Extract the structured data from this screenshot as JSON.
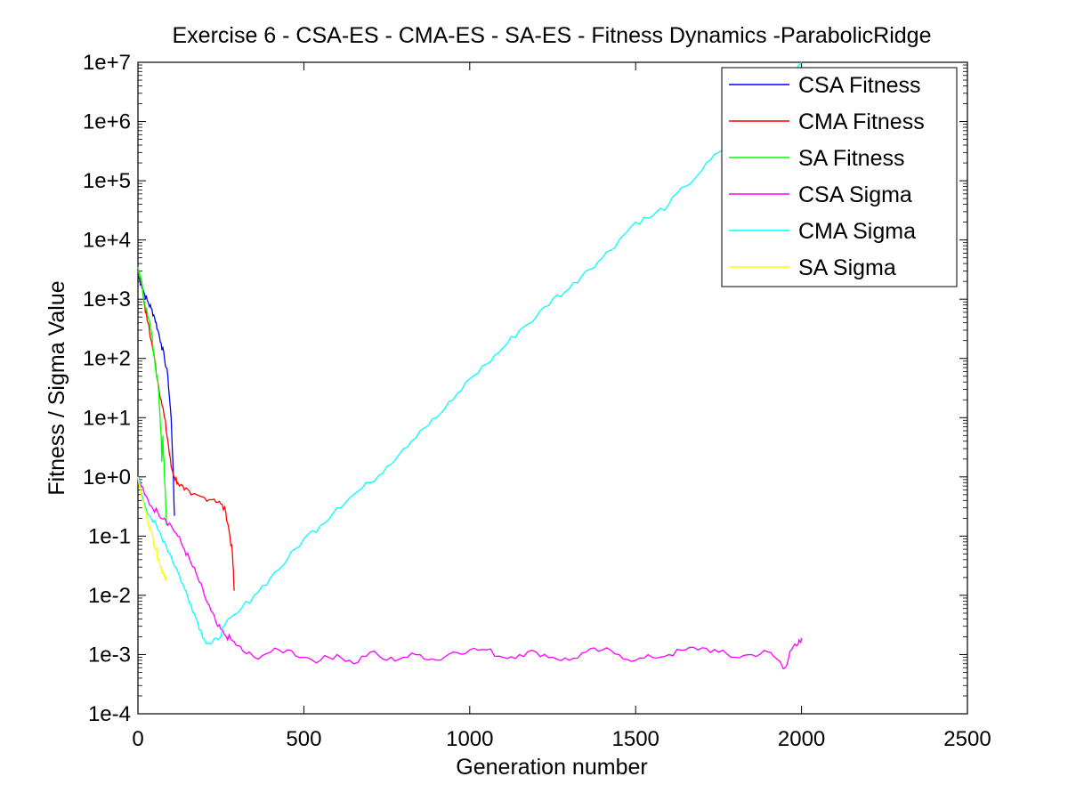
{
  "chart_data": {
    "type": "line",
    "title": "Exercise 6 - CSA-ES - CMA-ES - SA-ES - Fitness Dynamics -ParabolicRidge",
    "xlabel": "Generation number",
    "ylabel": "Fitness / Sigma Value",
    "xlim": [
      0,
      2500
    ],
    "ylim": [
      0.0001,
      10000000
    ],
    "yscale": "log",
    "grid": false,
    "legend_position": "top-right",
    "x_ticks": [
      {
        "value": 0,
        "label": "0"
      },
      {
        "value": 500,
        "label": "500"
      },
      {
        "value": 1000,
        "label": "1000"
      },
      {
        "value": 1500,
        "label": "1500"
      },
      {
        "value": 2000,
        "label": "2000"
      },
      {
        "value": 2500,
        "label": "2500"
      }
    ],
    "y_ticks": [
      {
        "value": 0.0001,
        "label": "1e-4"
      },
      {
        "value": 0.001,
        "label": "1e-3"
      },
      {
        "value": 0.01,
        "label": "1e-2"
      },
      {
        "value": 0.1,
        "label": "1e-1"
      },
      {
        "value": 1,
        "label": "1e+0"
      },
      {
        "value": 10,
        "label": "1e+1"
      },
      {
        "value": 100,
        "label": "1e+2"
      },
      {
        "value": 1000,
        "label": "1e+3"
      },
      {
        "value": 10000,
        "label": "1e+4"
      },
      {
        "value": 100000,
        "label": "1e+5"
      },
      {
        "value": 1000000,
        "label": "1e+6"
      },
      {
        "value": 10000000,
        "label": "1e+7"
      }
    ],
    "series": [
      {
        "name": "CSA Fitness",
        "color": "#0000ff",
        "points": [
          [
            0,
            2500
          ],
          [
            10,
            1800
          ],
          [
            20,
            1200
          ],
          [
            30,
            900
          ],
          [
            40,
            700
          ],
          [
            50,
            500
          ],
          [
            60,
            300
          ],
          [
            70,
            180
          ],
          [
            80,
            100
          ],
          [
            90,
            50
          ],
          [
            100,
            10
          ],
          [
            105,
            2
          ],
          [
            110,
            0.22
          ]
        ]
      },
      {
        "name": "CMA Fitness",
        "color": "#ff0000",
        "points": [
          [
            0,
            3000
          ],
          [
            10,
            2000
          ],
          [
            20,
            800
          ],
          [
            30,
            400
          ],
          [
            40,
            200
          ],
          [
            50,
            100
          ],
          [
            60,
            40
          ],
          [
            70,
            20
          ],
          [
            80,
            10
          ],
          [
            90,
            4
          ],
          [
            100,
            1.5
          ],
          [
            110,
            1.0
          ],
          [
            120,
            0.8
          ],
          [
            140,
            0.6
          ],
          [
            160,
            0.5
          ],
          [
            200,
            0.45
          ],
          [
            230,
            0.42
          ],
          [
            250,
            0.35
          ],
          [
            265,
            0.25
          ],
          [
            275,
            0.12
          ],
          [
            285,
            0.05
          ],
          [
            290,
            0.012
          ]
        ]
      },
      {
        "name": "SA Fitness",
        "color": "#00ff00",
        "points": [
          [
            0,
            3500
          ],
          [
            10,
            2000
          ],
          [
            20,
            900
          ],
          [
            30,
            500
          ],
          [
            40,
            300
          ],
          [
            50,
            100
          ],
          [
            60,
            40
          ],
          [
            65,
            15
          ],
          [
            70,
            5
          ],
          [
            72,
            1.8
          ],
          [
            75,
            5
          ],
          [
            78,
            2
          ],
          [
            80,
            1
          ],
          [
            83,
            0.5
          ],
          [
            86,
            0.15
          ]
        ]
      },
      {
        "name": "CSA Sigma",
        "color": "#ff00ff",
        "points": [
          [
            0,
            1
          ],
          [
            20,
            0.5
          ],
          [
            40,
            0.32
          ],
          [
            60,
            0.25
          ],
          [
            80,
            0.2
          ],
          [
            100,
            0.15
          ],
          [
            120,
            0.1
          ],
          [
            140,
            0.06
          ],
          [
            160,
            0.035
          ],
          [
            180,
            0.02
          ],
          [
            200,
            0.01
          ],
          [
            220,
            0.0055
          ],
          [
            240,
            0.003
          ],
          [
            260,
            0.0022
          ],
          [
            280,
            0.0018
          ],
          [
            300,
            0.0014
          ],
          [
            320,
            0.0011
          ],
          [
            350,
            0.0009
          ],
          [
            400,
            0.0011
          ],
          [
            450,
            0.0012
          ],
          [
            500,
            0.0009
          ],
          [
            550,
            0.0008
          ],
          [
            600,
            0.001
          ],
          [
            650,
            0.0007
          ],
          [
            700,
            0.0011
          ],
          [
            750,
            0.0008
          ],
          [
            800,
            0.0009
          ],
          [
            850,
            0.001
          ],
          [
            900,
            0.0008
          ],
          [
            950,
            0.0011
          ],
          [
            1000,
            0.0012
          ],
          [
            1050,
            0.0012
          ],
          [
            1100,
            0.0009
          ],
          [
            1150,
            0.001
          ],
          [
            1200,
            0.0011
          ],
          [
            1250,
            0.0009
          ],
          [
            1300,
            0.0008
          ],
          [
            1350,
            0.0011
          ],
          [
            1400,
            0.0012
          ],
          [
            1450,
            0.001
          ],
          [
            1500,
            0.0008
          ],
          [
            1550,
            0.0009
          ],
          [
            1600,
            0.001
          ],
          [
            1650,
            0.0012
          ],
          [
            1700,
            0.0013
          ],
          [
            1750,
            0.0011
          ],
          [
            1800,
            0.0009
          ],
          [
            1850,
            0.001
          ],
          [
            1900,
            0.0011
          ],
          [
            1930,
            0.0008
          ],
          [
            1950,
            0.0006
          ],
          [
            1970,
            0.0012
          ],
          [
            1990,
            0.0015
          ],
          [
            2000,
            0.0019
          ]
        ]
      },
      {
        "name": "CMA Sigma",
        "color": "#00ffff",
        "points": [
          [
            0,
            1
          ],
          [
            20,
            0.35
          ],
          [
            40,
            0.2
          ],
          [
            60,
            0.13
          ],
          [
            80,
            0.08
          ],
          [
            100,
            0.045
          ],
          [
            120,
            0.025
          ],
          [
            140,
            0.013
          ],
          [
            160,
            0.007
          ],
          [
            180,
            0.0035
          ],
          [
            200,
            0.0018
          ],
          [
            220,
            0.0015
          ],
          [
            240,
            0.0018
          ],
          [
            260,
            0.003
          ],
          [
            300,
            0.005
          ],
          [
            350,
            0.01
          ],
          [
            400,
            0.02
          ],
          [
            450,
            0.04
          ],
          [
            500,
            0.09
          ],
          [
            550,
            0.15
          ],
          [
            600,
            0.3
          ],
          [
            650,
            0.5
          ],
          [
            700,
            0.8
          ],
          [
            750,
            1.5
          ],
          [
            800,
            3
          ],
          [
            850,
            6
          ],
          [
            900,
            10
          ],
          [
            950,
            20
          ],
          [
            1000,
            45
          ],
          [
            1050,
            80
          ],
          [
            1100,
            150
          ],
          [
            1150,
            300
          ],
          [
            1200,
            500
          ],
          [
            1250,
            1000
          ],
          [
            1300,
            1500
          ],
          [
            1350,
            3000
          ],
          [
            1400,
            5000
          ],
          [
            1450,
            10000
          ],
          [
            1500,
            20000
          ],
          [
            1550,
            25000
          ],
          [
            1600,
            40000
          ],
          [
            1650,
            80000
          ],
          [
            1700,
            150000
          ],
          [
            1750,
            300000
          ],
          [
            1800,
            500000
          ],
          [
            1850,
            900000
          ],
          [
            1900,
            2000000
          ],
          [
            1950,
            3500000
          ],
          [
            1980,
            6000000
          ],
          [
            2000,
            10000000
          ]
        ]
      },
      {
        "name": "SA Sigma",
        "color": "#ffff00",
        "points": [
          [
            0,
            1
          ],
          [
            10,
            0.5
          ],
          [
            20,
            0.3
          ],
          [
            30,
            0.18
          ],
          [
            40,
            0.12
          ],
          [
            50,
            0.07
          ],
          [
            55,
            0.06
          ],
          [
            60,
            0.045
          ],
          [
            65,
            0.035
          ],
          [
            70,
            0.03
          ],
          [
            75,
            0.025
          ],
          [
            80,
            0.02
          ],
          [
            85,
            0.018
          ]
        ]
      }
    ]
  }
}
